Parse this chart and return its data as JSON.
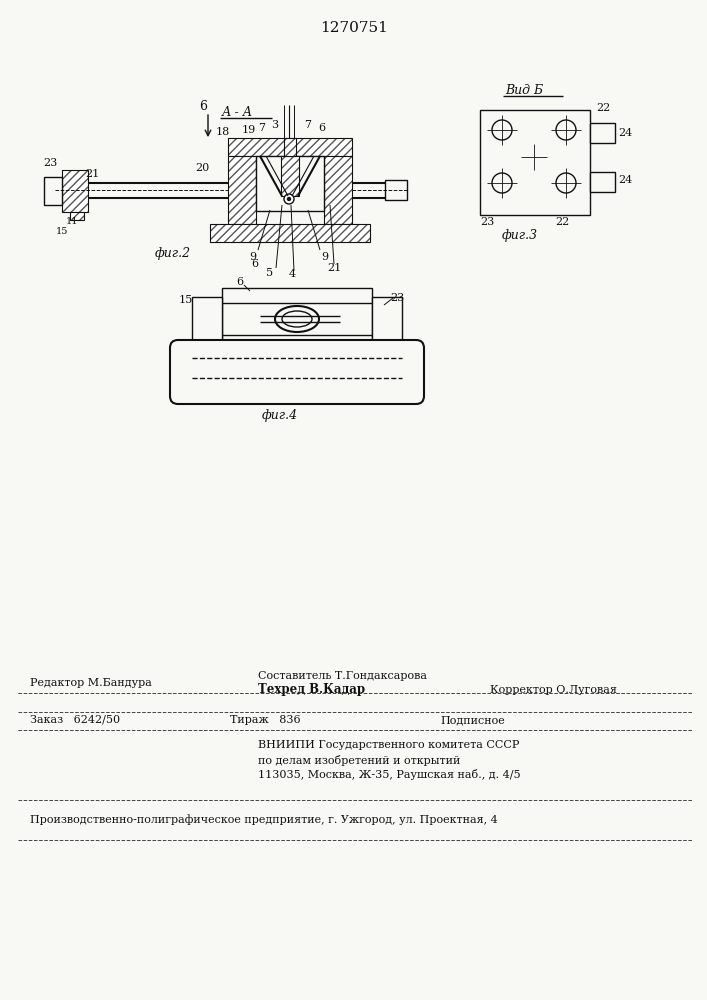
{
  "patent_number": "1270751",
  "bg_color": "#f8f8f5",
  "fig_width": 7.07,
  "fig_height": 10.0,
  "dpi": 100,
  "footer_line1_left": "Редактор М.Бандура",
  "footer_line1_center_top": "Составитель Т.Гондаксарова",
  "footer_line1_center_bot": "Техред В.Кадар",
  "footer_line1_right": "Корректор О.Луговая",
  "footer_line2_col1": "Заказ   6242/50",
  "footer_line2_col2": "Тираж   836",
  "footer_line2_col3": "Подписное",
  "footer_vnipi_line1": "ВНИИПИ Государственного комитета СССР",
  "footer_vnipi_line2": "по делам изобретений и открытий",
  "footer_vnipi_line3": "113035, Москва, Ж-35, Раушская наб., д. 4/5",
  "footer_bottom": "Производственно-полиграфическое предприятие, г. Ужгород, ул. Проектная, 4"
}
